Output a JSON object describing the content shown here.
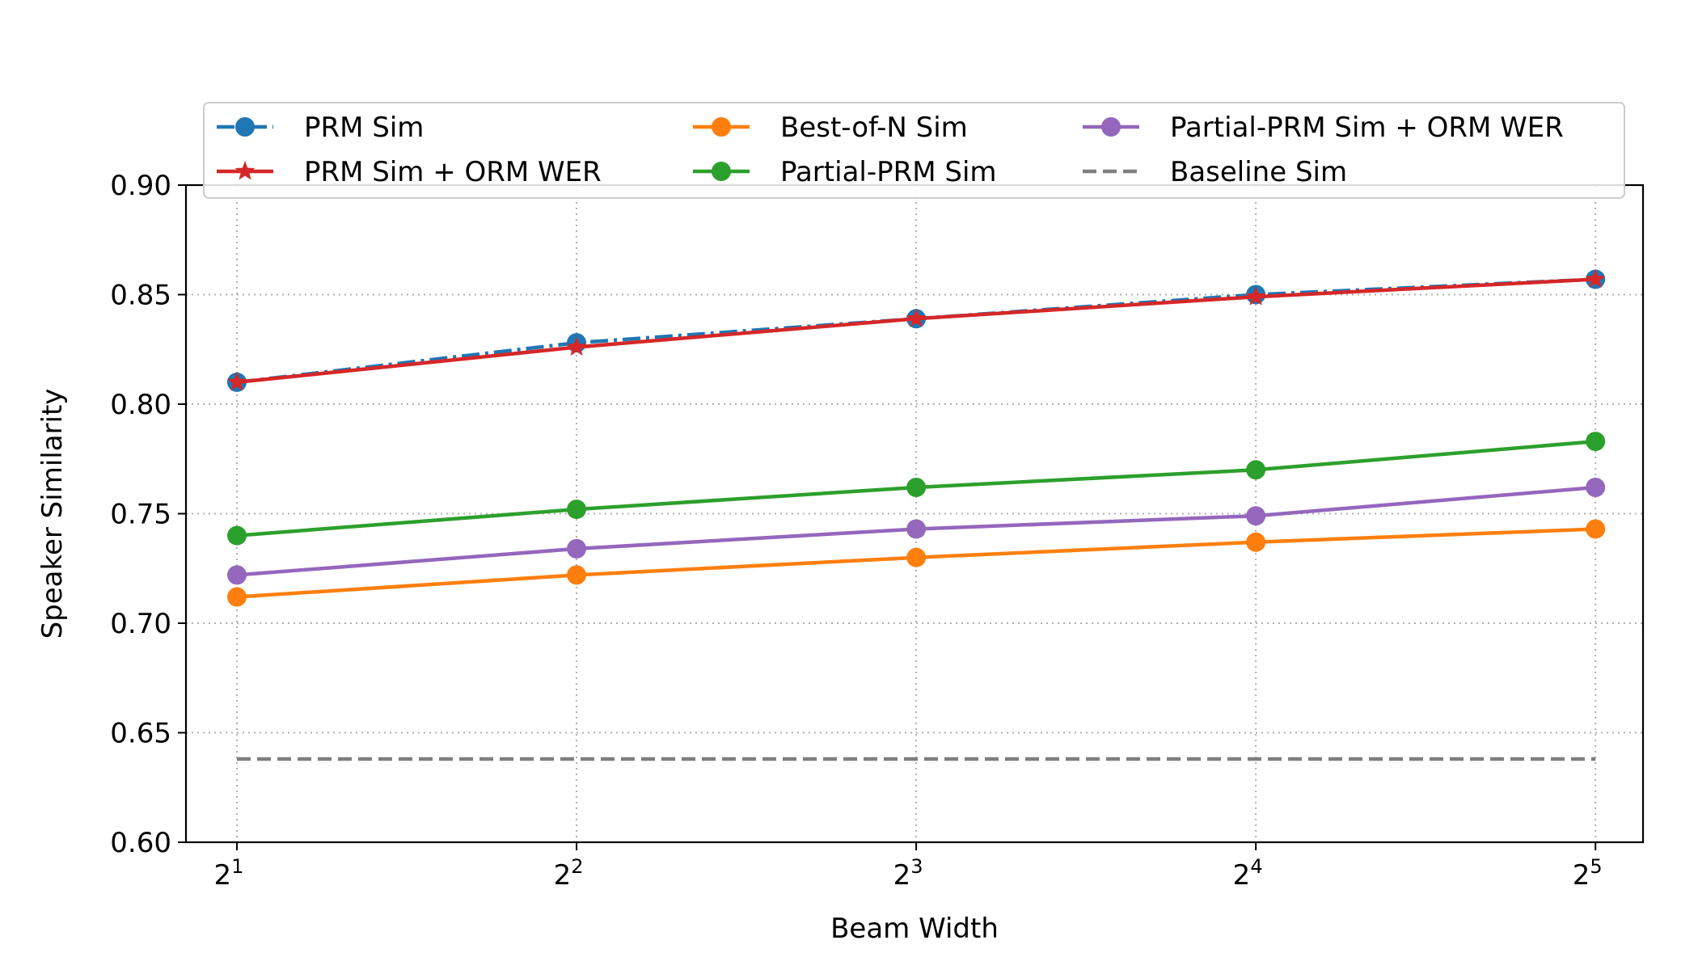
{
  "chart_data": {
    "type": "line",
    "title": "",
    "xlabel": "Beam Width",
    "ylabel": "Speaker Similarity",
    "x": [
      1,
      2,
      3,
      4,
      5
    ],
    "x_tick_labels": [
      {
        "base": "2",
        "exp": "1"
      },
      {
        "base": "2",
        "exp": "2"
      },
      {
        "base": "2",
        "exp": "3"
      },
      {
        "base": "2",
        "exp": "4"
      },
      {
        "base": "2",
        "exp": "5"
      }
    ],
    "ylim": [
      0.6,
      0.9
    ],
    "y_ticks": [
      "0.60",
      "0.65",
      "0.70",
      "0.75",
      "0.80",
      "0.85",
      "0.90"
    ],
    "grid": true,
    "legend_position": "top-center",
    "series": [
      {
        "name": "PRM Sim",
        "color": "#1f77b4",
        "marker": "circle",
        "dash": "dashdot",
        "values": [
          0.81,
          0.828,
          0.839,
          0.85,
          0.857
        ]
      },
      {
        "name": "PRM Sim + ORM WER",
        "color": "#d62728",
        "marker": "star",
        "dash": "solid",
        "values": [
          0.81,
          0.826,
          0.839,
          0.849,
          0.857
        ]
      },
      {
        "name": "Best-of-N Sim",
        "color": "#ff7f0e",
        "marker": "circle",
        "dash": "solid",
        "values": [
          0.712,
          0.722,
          0.73,
          0.737,
          0.743
        ]
      },
      {
        "name": "Partial-PRM Sim",
        "color": "#2ca02c",
        "marker": "circle",
        "dash": "solid",
        "values": [
          0.74,
          0.752,
          0.762,
          0.77,
          0.783
        ]
      },
      {
        "name": "Partial-PRM Sim + ORM WER",
        "color": "#9467bd",
        "marker": "circle",
        "dash": "solid",
        "values": [
          0.722,
          0.734,
          0.743,
          0.749,
          0.762
        ]
      },
      {
        "name": "Baseline Sim",
        "color": "#7f7f7f",
        "marker": "none",
        "dash": "dashed",
        "values": [
          0.638,
          0.638,
          0.638,
          0.638,
          0.638
        ]
      }
    ]
  }
}
